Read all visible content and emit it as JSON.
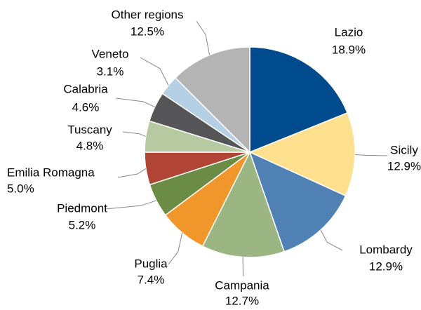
{
  "chart_data": {
    "type": "pie",
    "categories": [
      "Lazio",
      "Sicily",
      "Lombardy",
      "Campania",
      "Puglia",
      "Piedmont",
      "Emilia Romagna",
      "Tuscany",
      "Calabria",
      "Veneto",
      "Other regions"
    ],
    "values": [
      18.9,
      12.9,
      12.9,
      12.7,
      7.4,
      5.2,
      5.0,
      4.8,
      4.6,
      3.1,
      12.5
    ],
    "value_labels": [
      "18.9%",
      "12.9%",
      "12.9%",
      "12.7%",
      "7.4%",
      "5.2%",
      "5.0%",
      "4.8%",
      "4.6%",
      "3.1%",
      "12.5%"
    ],
    "colors": [
      "#004b8d",
      "#ffe08f",
      "#4f81b5",
      "#9bb583",
      "#f0962b",
      "#6a8c45",
      "#b04535",
      "#b6c9a0",
      "#555558",
      "#b5cfe4",
      "#b4b4b4"
    ]
  }
}
